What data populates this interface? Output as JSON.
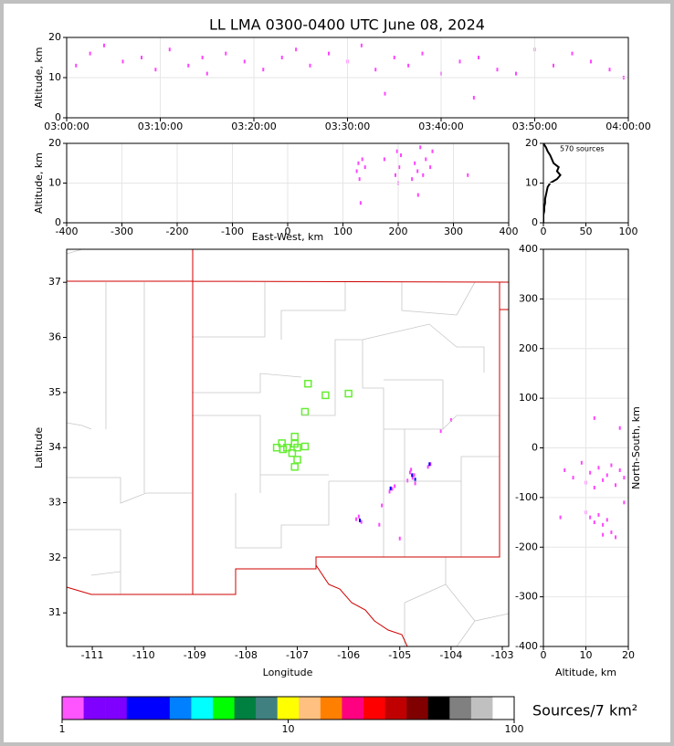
{
  "chart_data": [
    {
      "type": "scatter",
      "title": "LL LMA 0300-0400 UTC June 08, 2024",
      "ylabel": "Altitude, km",
      "xlim": [
        0,
        60
      ],
      "ylim": [
        0,
        20
      ],
      "grid": true,
      "xticks": [
        {
          "value": 0,
          "label": "03:00:00"
        },
        {
          "value": 10,
          "label": "03:10:00"
        },
        {
          "value": 20,
          "label": "03:20:00"
        },
        {
          "value": 30,
          "label": "03:30:00"
        },
        {
          "value": 40,
          "label": "03:40:00"
        },
        {
          "value": 50,
          "label": "03:50:00"
        },
        {
          "value": 60,
          "label": "04:00:00"
        }
      ],
      "yticks": [
        0,
        10,
        20
      ],
      "layers": [
        {
          "color": "#ff44ff",
          "marker": "dot",
          "x": [
            1,
            2.5,
            4,
            6,
            8,
            9.5,
            11,
            13,
            15,
            17,
            19,
            21,
            23,
            24.5,
            26,
            28,
            30,
            31.5,
            33,
            35,
            36.5,
            38,
            40,
            42,
            44,
            46,
            48,
            50,
            52,
            54,
            56,
            58,
            59.5,
            14.5,
            34,
            43.5
          ],
          "y": [
            13,
            16,
            18,
            14,
            15,
            12,
            17,
            13,
            11,
            16,
            14,
            12,
            15,
            17,
            13,
            16,
            14,
            18,
            12,
            15,
            13,
            16,
            11,
            14,
            15,
            12,
            11,
            17,
            13,
            16,
            14,
            12,
            10,
            15,
            6,
            5
          ]
        }
      ]
    },
    {
      "type": "scatter",
      "xlabel": "East-West, km",
      "ylabel": "Altitude, km",
      "xlim": [
        -400,
        400
      ],
      "ylim": [
        0,
        20
      ],
      "grid": true,
      "xticks": [
        -400,
        -300,
        -200,
        -100,
        0,
        100,
        200,
        300,
        400
      ],
      "yticks": [
        0,
        10,
        20
      ],
      "layers": [
        {
          "color": "#ff44ff",
          "marker": "dot",
          "x": [
            125,
            128,
            130,
            135,
            140,
            175,
            195,
            198,
            200,
            202,
            205,
            225,
            230,
            235,
            240,
            245,
            250,
            258,
            262,
            132,
            236,
            326
          ],
          "y": [
            13,
            15,
            11,
            16,
            14,
            16,
            12,
            18,
            10,
            14,
            17,
            11,
            15,
            13,
            19,
            12,
            16,
            14,
            18,
            5,
            7,
            12
          ]
        }
      ]
    },
    {
      "type": "line",
      "annotation": "570 sources",
      "color": "#000000",
      "xlim": [
        0,
        100
      ],
      "ylim": [
        0,
        20
      ],
      "grid": true,
      "xticks": [
        0,
        50,
        100
      ],
      "yticks": [
        0,
        10,
        20
      ],
      "y": [
        0,
        1,
        2,
        3,
        4,
        5,
        6,
        7,
        8,
        9,
        10,
        11,
        12,
        13,
        14,
        15,
        16,
        17,
        18,
        19,
        20
      ],
      "values": [
        0,
        0,
        0,
        1,
        1,
        2,
        2,
        3,
        4,
        5,
        8,
        16,
        20,
        16,
        18,
        12,
        10,
        8,
        5,
        3,
        0
      ]
    },
    {
      "type": "map",
      "xlabel": "Longitude",
      "ylabel": "Latitude",
      "xlim": [
        -111.5,
        -102.875
      ],
      "ylim": [
        30.39,
        37.6
      ],
      "grid": false,
      "xticks": [
        -111,
        -110,
        -109,
        -108,
        -107,
        -106,
        -105,
        -104,
        -103
      ],
      "yticks": [
        31,
        32,
        33,
        34,
        35,
        36,
        37
      ],
      "layers": [
        {
          "color": "#66ee33",
          "marker": "square-open",
          "x": [
            -106.79,
            -106.45,
            -106.0,
            -106.85,
            -107.05,
            -107.05,
            -107.3,
            -107.4,
            -107.2,
            -107.0,
            -106.85,
            -107.1,
            -107.0,
            -107.05,
            -107.28
          ],
          "y": [
            35.16,
            34.95,
            34.98,
            34.65,
            34.2,
            34.07,
            34.08,
            34.0,
            34.0,
            34.0,
            34.02,
            33.9,
            33.78,
            33.65,
            33.97
          ]
        },
        {
          "color": "#ff44ff",
          "marker": "dot",
          "x": [
            -104.8,
            -104.75,
            -104.7,
            -104.85,
            -104.78,
            -104.72,
            -104.4,
            -104.45,
            -105.1,
            -105.15,
            -105.2,
            -105.8,
            -105.75,
            -105.85,
            -105.4,
            -105.0,
            -104.2,
            -104.0,
            -105.35
          ],
          "y": [
            33.55,
            33.45,
            33.35,
            33.4,
            33.6,
            33.5,
            33.7,
            33.65,
            33.3,
            33.25,
            33.2,
            32.75,
            32.65,
            32.7,
            32.6,
            32.35,
            34.3,
            34.5,
            32.95
          ]
        },
        {
          "color": "#0000ff",
          "marker": "dot",
          "x": [
            -104.76,
            -104.7,
            -105.18,
            -105.78,
            -104.42
          ],
          "y": [
            33.5,
            33.42,
            33.26,
            32.68,
            33.7
          ]
        }
      ]
    },
    {
      "type": "scatter",
      "xlabel": "Altitude, km",
      "ylabel": "North-South, km",
      "xlim": [
        0,
        20
      ],
      "ylim": [
        -400,
        400
      ],
      "grid": true,
      "xticks": [
        0,
        10,
        20
      ],
      "yticks": [
        -400,
        -300,
        -200,
        -100,
        0,
        100,
        200,
        300,
        400
      ],
      "layers": [
        {
          "color": "#ff44ff",
          "marker": "dot",
          "x": [
            5,
            7,
            9,
            10,
            11,
            12,
            13,
            14,
            15,
            16,
            17,
            18,
            19,
            11,
            12,
            13,
            14,
            15,
            16,
            17,
            4,
            12,
            18,
            10,
            14,
            19
          ],
          "y": [
            -45,
            -60,
            -30,
            -70,
            -50,
            -80,
            -40,
            -65,
            -55,
            -35,
            -75,
            -45,
            -60,
            -140,
            -150,
            -135,
            -155,
            -145,
            -170,
            -180,
            -140,
            60,
            40,
            -130,
            -175,
            -110
          ]
        }
      ]
    },
    {
      "type": "colorbar",
      "label": "Sources/7 km²",
      "log": true,
      "xlim": [
        1,
        100
      ],
      "xticks": [
        1,
        10,
        100
      ],
      "colors": [
        "#ff55ff",
        "#8000ff",
        "#8000ff",
        "#0000ff",
        "#0000ff",
        "#0080ff",
        "#00ffff",
        "#00ff00",
        "#008040",
        "#408080",
        "#ffff00",
        "#ffc080",
        "#ff8000",
        "#ff0080",
        "#ff0000",
        "#c00000",
        "#800000",
        "#000000",
        "#808080",
        "#c0c0c0",
        "#ffffff"
      ]
    }
  ]
}
